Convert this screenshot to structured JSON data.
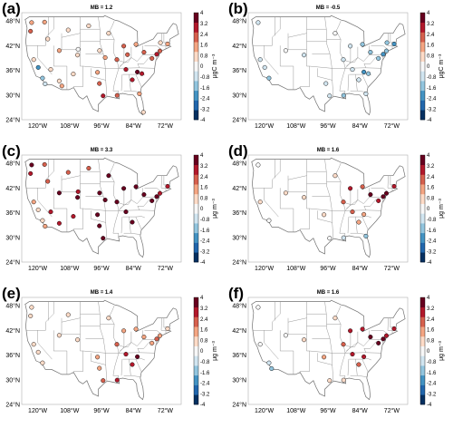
{
  "figure": {
    "colorscale": {
      "ticks": [
        "4",
        "3.2",
        "2.4",
        "1.6",
        "0.8",
        "0",
        "-0.8",
        "-1.6",
        "-2.4",
        "-3.2",
        "-4"
      ],
      "range": [
        -4,
        4
      ],
      "colors": [
        "#053061",
        "#2166ac",
        "#4393c3",
        "#92c5de",
        "#d1e5f0",
        "#f7f7f7",
        "#fddbc7",
        "#f4a582",
        "#d6604d",
        "#b2182b",
        "#67001f"
      ]
    },
    "y_ticks": [
      "48°N",
      "42°N",
      "36°N",
      "30°N",
      "24°N"
    ],
    "x_ticks": [
      "120°W",
      "108°W",
      "96°W",
      "84°W",
      "72°W"
    ]
  },
  "panels": [
    {
      "label": "(a)",
      "title": "MB = 1.2",
      "unit": "μgC m⁻³"
    },
    {
      "label": "(b)",
      "title": "MB = -0.5",
      "unit": "μgC m⁻³"
    },
    {
      "label": "(c)",
      "title": "MB = 3.3",
      "unit": "μg m⁻³"
    },
    {
      "label": "(d)",
      "title": "MB = 1.6",
      "unit": "μg m⁻³"
    },
    {
      "label": "(e)",
      "title": "MB = 1.4",
      "unit": "μg m⁻³"
    },
    {
      "label": "(f)",
      "title": "MB = 1.6",
      "unit": "μg m⁻³"
    }
  ],
  "chart_data": [
    {
      "type": "scatter",
      "title": "MB = 1.2",
      "colorbar_label": "μgC m⁻³",
      "xlim": [
        -126,
        -66
      ],
      "ylim": [
        24,
        50
      ],
      "points": [
        {
          "lon": -122.3,
          "lat": 47.6,
          "v": 1.2
        },
        {
          "lon": -122.7,
          "lat": 45.5,
          "v": 2.4
        },
        {
          "lon": -117.4,
          "lat": 47.7,
          "v": 1.6
        },
        {
          "lon": -121.5,
          "lat": 38.6,
          "v": 0.8
        },
        {
          "lon": -118.2,
          "lat": 34.1,
          "v": -1.6
        },
        {
          "lon": -117.2,
          "lat": 32.7,
          "v": -0.8
        },
        {
          "lon": -119.8,
          "lat": 36.7,
          "v": -2.4
        },
        {
          "lon": -115.1,
          "lat": 36.2,
          "v": 0.4
        },
        {
          "lon": -111.9,
          "lat": 33.4,
          "v": 0.8
        },
        {
          "lon": -111.9,
          "lat": 40.8,
          "v": 1.6
        },
        {
          "lon": -116.2,
          "lat": 43.6,
          "v": 0.8
        },
        {
          "lon": -105.0,
          "lat": 39.7,
          "v": 0.8
        },
        {
          "lon": -106.6,
          "lat": 35.1,
          "v": 0.4
        },
        {
          "lon": -110.9,
          "lat": 32.2,
          "v": 1.6
        },
        {
          "lon": -97.5,
          "lat": 35.5,
          "v": 1.6
        },
        {
          "lon": -96.8,
          "lat": 32.8,
          "v": 2.4
        },
        {
          "lon": -95.4,
          "lat": 29.8,
          "v": 3.2
        },
        {
          "lon": -90.1,
          "lat": 29.9,
          "v": 2.4
        },
        {
          "lon": -93.3,
          "lat": 45.0,
          "v": 0.8
        },
        {
          "lon": -87.6,
          "lat": 41.9,
          "v": 2.4
        },
        {
          "lon": -83.0,
          "lat": 42.3,
          "v": 1.6
        },
        {
          "lon": -84.4,
          "lat": 33.7,
          "v": 3.2
        },
        {
          "lon": -80.2,
          "lat": 25.8,
          "v": 0.4
        },
        {
          "lon": -81.7,
          "lat": 30.3,
          "v": 1.6
        },
        {
          "lon": -77.0,
          "lat": 38.9,
          "v": 2.4
        },
        {
          "lon": -75.2,
          "lat": 39.9,
          "v": 3.2
        },
        {
          "lon": -74.0,
          "lat": 40.7,
          "v": 2.4
        },
        {
          "lon": -71.1,
          "lat": 42.4,
          "v": 1.6
        },
        {
          "lon": -73.8,
          "lat": 42.7,
          "v": 0.8
        },
        {
          "lon": -80.0,
          "lat": 40.4,
          "v": 2.4
        },
        {
          "lon": -86.8,
          "lat": 36.2,
          "v": 3.2
        },
        {
          "lon": -90.2,
          "lat": 38.6,
          "v": 2.4
        },
        {
          "lon": -94.6,
          "lat": 39.1,
          "v": 1.6
        },
        {
          "lon": -86.2,
          "lat": 39.8,
          "v": 2.4
        },
        {
          "lon": -82.5,
          "lat": 35.6,
          "v": 4.0
        },
        {
          "lon": -80.8,
          "lat": 35.2,
          "v": 3.2
        },
        {
          "lon": -104.8,
          "lat": 41.1,
          "v": 0.0
        },
        {
          "lon": -108.5,
          "lat": 45.8,
          "v": 0.8
        },
        {
          "lon": -100.8,
          "lat": 46.8,
          "v": 0.4
        },
        {
          "lon": -96.7,
          "lat": 40.8,
          "v": 0.8
        }
      ]
    },
    {
      "type": "scatter",
      "title": "MB = -0.5",
      "colorbar_label": "μgC m⁻³",
      "xlim": [
        -126,
        -66
      ],
      "ylim": [
        24,
        50
      ],
      "points": [
        {
          "lon": -122.3,
          "lat": 47.6,
          "v": -0.4
        },
        {
          "lon": -121.5,
          "lat": 38.6,
          "v": -0.8
        },
        {
          "lon": -118.2,
          "lat": 34.1,
          "v": -1.6
        },
        {
          "lon": -119.8,
          "lat": 36.7,
          "v": -0.8
        },
        {
          "lon": -111.9,
          "lat": 40.8,
          "v": 0.0
        },
        {
          "lon": -105.0,
          "lat": 39.7,
          "v": -0.4
        },
        {
          "lon": -96.8,
          "lat": 32.8,
          "v": -0.8
        },
        {
          "lon": -95.4,
          "lat": 29.8,
          "v": -0.8
        },
        {
          "lon": -90.1,
          "lat": 29.9,
          "v": -1.6
        },
        {
          "lon": -87.6,
          "lat": 41.9,
          "v": -0.8
        },
        {
          "lon": -83.0,
          "lat": 42.3,
          "v": -1.6
        },
        {
          "lon": -84.4,
          "lat": 33.7,
          "v": -0.8
        },
        {
          "lon": -81.7,
          "lat": 30.3,
          "v": -0.8
        },
        {
          "lon": -77.0,
          "lat": 38.9,
          "v": -1.6
        },
        {
          "lon": -75.2,
          "lat": 39.9,
          "v": -2.4
        },
        {
          "lon": -74.0,
          "lat": 40.7,
          "v": -1.6
        },
        {
          "lon": -71.1,
          "lat": 42.4,
          "v": -2.4
        },
        {
          "lon": -73.8,
          "lat": 42.7,
          "v": -1.6
        },
        {
          "lon": -80.0,
          "lat": 40.4,
          "v": -1.6
        },
        {
          "lon": -86.8,
          "lat": 36.2,
          "v": -0.8
        },
        {
          "lon": -90.2,
          "lat": 38.6,
          "v": -0.8
        },
        {
          "lon": -82.5,
          "lat": 35.6,
          "v": -2.4
        },
        {
          "lon": -80.8,
          "lat": 35.2,
          "v": -1.6
        },
        {
          "lon": -93.3,
          "lat": 45.0,
          "v": 0.0
        }
      ]
    },
    {
      "type": "scatter",
      "title": "MB = 3.3",
      "colorbar_label": "μg m⁻³",
      "xlim": [
        -126,
        -66
      ],
      "ylim": [
        24,
        50
      ],
      "points": [
        {
          "lon": -122.3,
          "lat": 47.6,
          "v": 4.0
        },
        {
          "lon": -122.7,
          "lat": 45.5,
          "v": 3.2
        },
        {
          "lon": -117.4,
          "lat": 47.7,
          "v": 2.4
        },
        {
          "lon": -121.5,
          "lat": 38.6,
          "v": 1.6
        },
        {
          "lon": -118.2,
          "lat": 34.1,
          "v": 0.8
        },
        {
          "lon": -117.2,
          "lat": 32.7,
          "v": 1.6
        },
        {
          "lon": -119.8,
          "lat": 36.7,
          "v": 0.8
        },
        {
          "lon": -115.1,
          "lat": 36.2,
          "v": 3.2
        },
        {
          "lon": -111.9,
          "lat": 33.4,
          "v": 3.2
        },
        {
          "lon": -111.9,
          "lat": 40.8,
          "v": 4.0
        },
        {
          "lon": -116.2,
          "lat": 43.6,
          "v": 2.4
        },
        {
          "lon": -105.0,
          "lat": 39.7,
          "v": 4.0
        },
        {
          "lon": -106.6,
          "lat": 35.1,
          "v": 3.2
        },
        {
          "lon": -97.5,
          "lat": 35.5,
          "v": 4.0
        },
        {
          "lon": -96.8,
          "lat": 32.8,
          "v": 4.0
        },
        {
          "lon": -95.4,
          "lat": 29.8,
          "v": 4.0
        },
        {
          "lon": -93.3,
          "lat": 45.0,
          "v": 4.0
        },
        {
          "lon": -87.6,
          "lat": 41.9,
          "v": 4.0
        },
        {
          "lon": -83.0,
          "lat": 42.3,
          "v": 4.0
        },
        {
          "lon": -84.4,
          "lat": 33.7,
          "v": 4.0
        },
        {
          "lon": -77.0,
          "lat": 38.9,
          "v": 4.0
        },
        {
          "lon": -75.2,
          "lat": 39.9,
          "v": 4.0
        },
        {
          "lon": -74.0,
          "lat": 40.7,
          "v": 3.2
        },
        {
          "lon": -71.1,
          "lat": 42.4,
          "v": 3.2
        },
        {
          "lon": -80.0,
          "lat": 40.4,
          "v": 4.0
        },
        {
          "lon": -86.8,
          "lat": 36.2,
          "v": 4.0
        },
        {
          "lon": -90.2,
          "lat": 38.6,
          "v": 4.0
        },
        {
          "lon": -94.6,
          "lat": 39.1,
          "v": 4.0
        },
        {
          "lon": -104.8,
          "lat": 41.1,
          "v": 3.2
        },
        {
          "lon": -100.8,
          "lat": 46.8,
          "v": 2.4
        },
        {
          "lon": -108.5,
          "lat": 45.8,
          "v": 2.4
        },
        {
          "lon": -96.7,
          "lat": 40.8,
          "v": 4.0
        }
      ]
    },
    {
      "type": "scatter",
      "title": "MB = 1.6",
      "colorbar_label": "μg m⁻³",
      "xlim": [
        -126,
        -66
      ],
      "ylim": [
        24,
        50
      ],
      "points": [
        {
          "lon": -122.3,
          "lat": 47.6,
          "v": 0.0
        },
        {
          "lon": -121.5,
          "lat": 38.6,
          "v": 0.4
        },
        {
          "lon": -118.2,
          "lat": 34.1,
          "v": 0.0
        },
        {
          "lon": -111.9,
          "lat": 40.8,
          "v": 0.8
        },
        {
          "lon": -105.0,
          "lat": 39.7,
          "v": 0.4
        },
        {
          "lon": -97.5,
          "lat": 35.5,
          "v": 0.8
        },
        {
          "lon": -95.4,
          "lat": 29.8,
          "v": 0.0
        },
        {
          "lon": -90.1,
          "lat": 29.9,
          "v": -0.8
        },
        {
          "lon": -87.6,
          "lat": 41.9,
          "v": 3.2
        },
        {
          "lon": -83.0,
          "lat": 42.3,
          "v": 2.4
        },
        {
          "lon": -84.4,
          "lat": 33.7,
          "v": 1.6
        },
        {
          "lon": -81.7,
          "lat": 30.3,
          "v": -1.6
        },
        {
          "lon": -77.0,
          "lat": 38.9,
          "v": 3.2
        },
        {
          "lon": -75.2,
          "lat": 39.9,
          "v": 4.0
        },
        {
          "lon": -74.0,
          "lat": 40.7,
          "v": 4.0
        },
        {
          "lon": -71.1,
          "lat": 42.4,
          "v": 3.2
        },
        {
          "lon": -80.0,
          "lat": 40.4,
          "v": 4.0
        },
        {
          "lon": -86.8,
          "lat": 36.2,
          "v": 2.4
        },
        {
          "lon": -90.2,
          "lat": 38.6,
          "v": 2.4
        },
        {
          "lon": -82.5,
          "lat": 35.6,
          "v": 1.6
        },
        {
          "lon": -93.3,
          "lat": 45.0,
          "v": 0.8
        }
      ]
    },
    {
      "type": "scatter",
      "title": "MB = 1.4",
      "colorbar_label": "μg m⁻³",
      "xlim": [
        -126,
        -66
      ],
      "ylim": [
        24,
        50
      ],
      "points": [
        {
          "lon": -122.3,
          "lat": 47.6,
          "v": 0.4
        },
        {
          "lon": -122.7,
          "lat": 45.5,
          "v": 0.8
        },
        {
          "lon": -121.5,
          "lat": 38.6,
          "v": 0.4
        },
        {
          "lon": -118.2,
          "lat": 34.1,
          "v": 0.8
        },
        {
          "lon": -119.8,
          "lat": 36.7,
          "v": 0.4
        },
        {
          "lon": -111.9,
          "lat": 40.8,
          "v": 0.8
        },
        {
          "lon": -105.0,
          "lat": 39.7,
          "v": 0.8
        },
        {
          "lon": -97.5,
          "lat": 35.5,
          "v": 1.6
        },
        {
          "lon": -96.8,
          "lat": 32.8,
          "v": 1.6
        },
        {
          "lon": -95.4,
          "lat": 29.8,
          "v": 2.4
        },
        {
          "lon": -87.6,
          "lat": 41.9,
          "v": 1.6
        },
        {
          "lon": -83.0,
          "lat": 42.3,
          "v": 1.6
        },
        {
          "lon": -84.4,
          "lat": 33.7,
          "v": 3.2
        },
        {
          "lon": -77.0,
          "lat": 38.9,
          "v": 1.6
        },
        {
          "lon": -75.2,
          "lat": 39.9,
          "v": 2.4
        },
        {
          "lon": -74.0,
          "lat": 40.7,
          "v": 1.6
        },
        {
          "lon": -71.1,
          "lat": 42.4,
          "v": 0.8
        },
        {
          "lon": -80.0,
          "lat": 40.4,
          "v": 1.6
        },
        {
          "lon": -86.8,
          "lat": 36.2,
          "v": 3.2
        },
        {
          "lon": -90.2,
          "lat": 38.6,
          "v": 2.4
        },
        {
          "lon": -82.5,
          "lat": 35.6,
          "v": 4.0
        },
        {
          "lon": -90.1,
          "lat": 29.9,
          "v": 3.2
        },
        {
          "lon": -93.3,
          "lat": 45.0,
          "v": 0.8
        },
        {
          "lon": -108.5,
          "lat": 45.8,
          "v": 0.4
        }
      ]
    },
    {
      "type": "scatter",
      "title": "MB = 1.6",
      "colorbar_label": "μg m⁻³",
      "xlim": [
        -126,
        -66
      ],
      "ylim": [
        24,
        50
      ],
      "points": [
        {
          "lon": -122.3,
          "lat": 47.6,
          "v": 0.0
        },
        {
          "lon": -121.5,
          "lat": 38.6,
          "v": 0.0
        },
        {
          "lon": -118.2,
          "lat": 34.1,
          "v": -0.8
        },
        {
          "lon": -117.2,
          "lat": 32.7,
          "v": -1.6
        },
        {
          "lon": -111.9,
          "lat": 40.8,
          "v": 0.0
        },
        {
          "lon": -105.0,
          "lat": 39.7,
          "v": 0.4
        },
        {
          "lon": -97.5,
          "lat": 35.5,
          "v": 1.6
        },
        {
          "lon": -95.4,
          "lat": 29.8,
          "v": 0.8
        },
        {
          "lon": -87.6,
          "lat": 41.9,
          "v": 3.2
        },
        {
          "lon": -83.0,
          "lat": 42.3,
          "v": 3.2
        },
        {
          "lon": -84.4,
          "lat": 33.7,
          "v": 2.4
        },
        {
          "lon": -77.0,
          "lat": 38.9,
          "v": 4.0
        },
        {
          "lon": -75.2,
          "lat": 39.9,
          "v": 4.0
        },
        {
          "lon": -74.0,
          "lat": 40.7,
          "v": 3.2
        },
        {
          "lon": -71.1,
          "lat": 42.4,
          "v": 3.2
        },
        {
          "lon": -80.0,
          "lat": 40.4,
          "v": 4.0
        },
        {
          "lon": -86.8,
          "lat": 36.2,
          "v": 3.2
        },
        {
          "lon": -90.2,
          "lat": 38.6,
          "v": 2.4
        },
        {
          "lon": -82.5,
          "lat": 35.6,
          "v": 3.2
        },
        {
          "lon": -93.3,
          "lat": 45.0,
          "v": 0.8
        },
        {
          "lon": -90.1,
          "lat": 29.9,
          "v": 0.8
        }
      ]
    }
  ]
}
